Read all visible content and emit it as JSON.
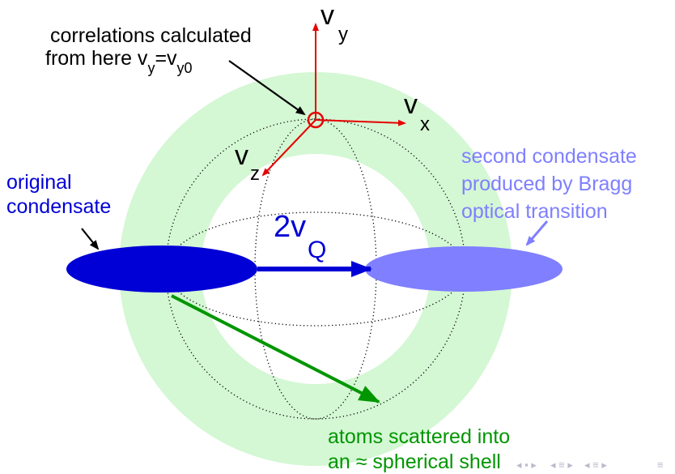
{
  "colors": {
    "shell": "#d4f7d4",
    "axes": "#e60000",
    "original": "#0000d6",
    "second": "#7f7fff",
    "scatter": "#009600",
    "text": "#000000",
    "nav": "#bbbbcc"
  },
  "annotations": {
    "correlations_line1": "correlations calculated",
    "correlations_line2_pre": "from here v",
    "correlations_line2_eq": "=v",
    "correlations_sub_y": "y",
    "correlations_sub_y0": "y0",
    "original_line1": "original",
    "original_line2": "condensate",
    "second_line1": "second condensate",
    "second_line2": "produced by Bragg",
    "second_line3": "optical transition",
    "atoms_line1": "atoms scattered into",
    "atoms_line2": "an ≈ spherical shell"
  },
  "axes": {
    "vy_main": "v",
    "vy_sub": "y",
    "vx_main": "v",
    "vx_sub": "x",
    "vz_main": "v",
    "vz_sub": "z"
  },
  "momentum": {
    "main": "2v",
    "sub": "Q"
  },
  "nav_icons": [
    "slide-prev-icon",
    "section-prev-icon",
    "section-next-icon",
    "align-icon"
  ]
}
